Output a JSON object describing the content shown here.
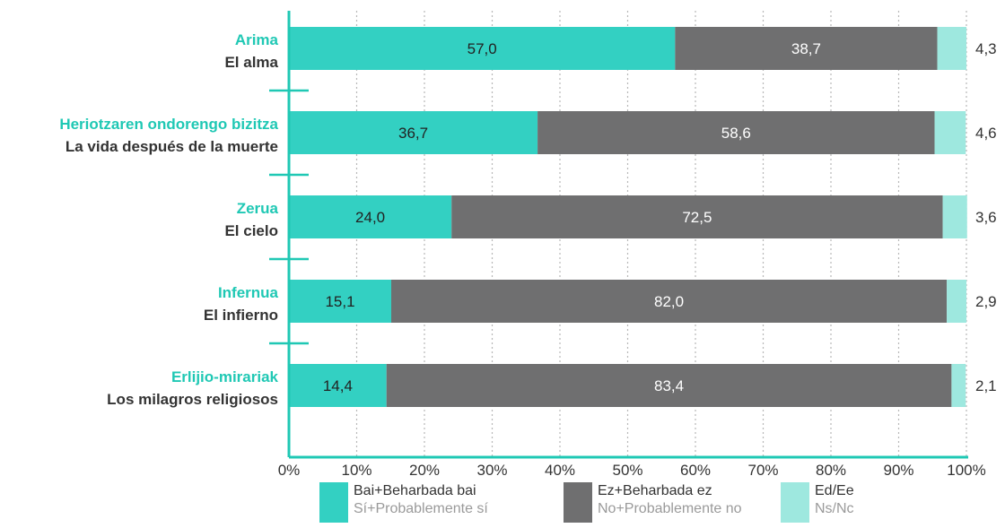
{
  "chart_data": {
    "type": "bar",
    "orientation": "horizontal",
    "stacked": true,
    "categories": [
      {
        "eu": "Arima",
        "es": "El alma"
      },
      {
        "eu": "Heriotzaren ondorengo bizitza",
        "es": "La vida después de la muerte"
      },
      {
        "eu": "Zerua",
        "es": "El cielo"
      },
      {
        "eu": "Infernua",
        "es": "El infierno"
      },
      {
        "eu": "Erlijio-mirariak",
        "es": "Los milagros religiosos"
      }
    ],
    "series": [
      {
        "name": "Bai+Beharbada bai",
        "name_es": "Sí+Probablemente sí",
        "color": "#33d0c2",
        "values": [
          57.0,
          36.7,
          24.0,
          15.1,
          14.4
        ],
        "labels": [
          "57,0",
          "36,7",
          "24,0",
          "15,1",
          "14,4"
        ],
        "label_color": "#222222"
      },
      {
        "name": "Ez+Beharbada ez",
        "name_es": "No+Probablemente no",
        "color": "#6f6f70",
        "values": [
          38.7,
          58.6,
          72.5,
          82.0,
          83.4
        ],
        "labels": [
          "38,7",
          "58,6",
          "72,5",
          "82,0",
          "83,4"
        ],
        "label_color": "#ffffff"
      },
      {
        "name": "Ed/Ee",
        "name_es": "Ns/Nc",
        "color": "#9ee8df",
        "values": [
          4.3,
          4.6,
          3.6,
          2.9,
          2.1
        ],
        "labels": [
          "4,3",
          "4,6",
          "3,6",
          "2,9",
          "2,1"
        ],
        "label_color": "#222222"
      }
    ],
    "xlim": [
      0,
      100
    ],
    "x_ticks": [
      "0%",
      "10%",
      "20%",
      "30%",
      "40%",
      "50%",
      "60%",
      "70%",
      "80%",
      "90%",
      "100%"
    ],
    "grid": "vertical dotted",
    "legend_position": "bottom",
    "accent_color": "#1fc8b4",
    "category_es_color": "#333333"
  }
}
